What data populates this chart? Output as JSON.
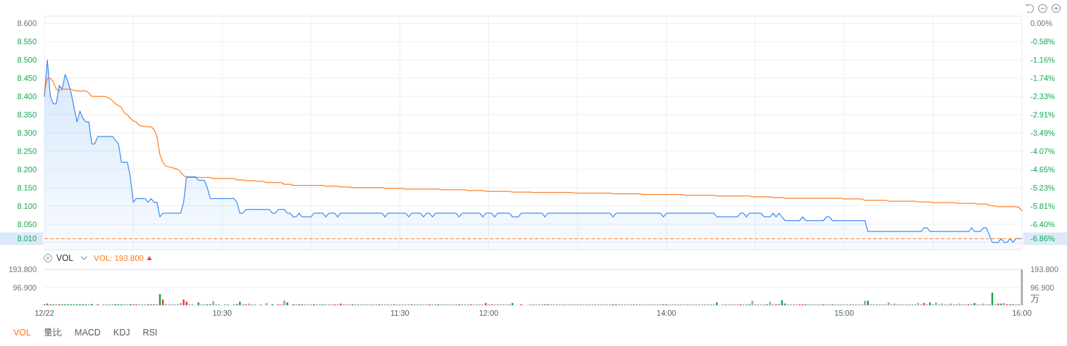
{
  "chart_data": [
    {
      "type": "line",
      "categories": [
        null,
        null,
        null,
        null,
        null,
        null,
        null,
        null,
        null,
        null,
        null,
        null,
        null,
        null,
        null,
        null,
        null,
        null,
        null,
        null,
        null,
        null,
        null,
        null,
        null,
        null,
        null,
        null,
        null,
        null,
        null,
        null,
        null,
        null,
        null,
        null,
        null,
        null,
        null,
        null,
        null,
        null,
        null,
        null,
        null,
        null,
        null,
        null,
        null,
        null,
        null,
        null,
        null,
        null,
        null,
        null,
        null,
        null,
        null,
        null,
        null,
        null,
        null,
        null,
        null,
        null,
        null,
        null,
        null,
        null,
        null,
        null,
        null,
        null,
        null,
        null,
        null,
        null,
        null,
        null,
        null,
        null,
        null,
        null,
        null,
        null,
        null,
        null,
        null,
        null,
        null,
        null,
        null,
        null,
        null,
        null,
        null,
        null,
        null,
        null,
        null,
        null,
        null,
        null,
        null,
        null,
        null,
        null,
        null,
        null,
        null,
        null,
        null,
        null,
        null,
        null,
        null,
        null,
        null,
        null,
        null,
        null,
        null,
        null,
        null,
        null,
        null,
        null,
        null,
        null,
        null,
        null,
        null,
        null,
        null,
        null,
        null,
        null,
        null,
        null,
        null,
        null,
        null,
        null,
        null,
        null,
        null,
        null,
        null,
        null,
        null,
        null,
        null,
        null,
        null,
        null,
        null,
        null,
        null,
        null,
        null,
        null,
        null,
        null,
        null,
        null,
        null,
        null,
        null,
        null,
        null,
        null,
        null,
        null,
        null,
        null,
        null,
        null,
        null,
        null,
        null,
        null,
        null,
        null,
        null,
        null,
        null,
        null,
        null,
        null,
        null,
        null,
        null,
        null,
        null,
        null,
        null,
        null,
        null,
        null,
        null,
        null,
        null,
        null,
        null,
        null,
        null,
        null,
        null,
        null,
        null,
        null,
        null,
        null,
        null,
        null,
        null,
        null,
        null,
        null,
        null,
        null,
        null,
        null,
        null,
        null,
        null,
        null,
        null,
        null,
        null,
        null,
        null,
        null,
        null,
        null,
        null,
        null,
        null,
        null,
        null,
        null,
        null,
        null,
        null,
        null,
        null,
        null,
        null,
        null,
        null,
        null,
        null,
        null,
        null,
        null,
        null,
        null,
        null,
        null,
        null,
        null,
        null,
        null,
        null,
        null,
        null,
        null,
        null,
        null,
        null,
        null,
        null,
        null,
        null,
        null,
        null,
        null,
        null,
        null,
        null,
        null,
        null,
        null,
        null,
        null,
        null,
        null,
        null,
        null,
        null,
        null,
        null,
        null,
        null,
        null,
        null,
        null,
        null,
        null,
        null,
        null,
        null,
        null,
        null,
        null,
        null,
        null,
        null,
        null,
        null,
        null,
        null,
        null,
        null,
        null,
        null,
        null,
        null,
        null,
        null,
        null,
        null,
        null,
        null,
        null,
        null,
        null,
        null,
        null,
        null
      ],
      "ylim": [
        7.98,
        8.62
      ],
      "yticks": [
        {
          "value": 8.6,
          "label": "8.600"
        },
        {
          "value": 8.55,
          "label": "8.550"
        },
        {
          "value": 8.5,
          "label": "8.500"
        },
        {
          "value": 8.45,
          "label": "8.450"
        },
        {
          "value": 8.4,
          "label": "8.400"
        },
        {
          "value": 8.35,
          "label": "8.350"
        },
        {
          "value": 8.3,
          "label": "8.300"
        },
        {
          "value": 8.25,
          "label": "8.250"
        },
        {
          "value": 8.2,
          "label": "8.200"
        },
        {
          "value": 8.15,
          "label": "8.150"
        },
        {
          "value": 8.1,
          "label": "8.100"
        },
        {
          "value": 8.05,
          "label": "8.050"
        },
        {
          "value": 8.0,
          "label": null
        }
      ],
      "y2lim": [
        -7.21,
        0.23
      ],
      "y2ticks": [
        {
          "value": 0,
          "label": "0.00%"
        },
        {
          "value": -0.58,
          "label": "-0.58%"
        },
        {
          "value": -1.16,
          "label": "-1.16%"
        },
        {
          "value": -1.74,
          "label": "-1.74%"
        },
        {
          "value": -2.33,
          "label": "-2.33%"
        },
        {
          "value": -2.91,
          "label": "-2.91%"
        },
        {
          "value": -3.49,
          "label": "-3.49%"
        },
        {
          "value": -4.07,
          "label": "-4.07%"
        },
        {
          "value": -4.65,
          "label": "-4.65%"
        },
        {
          "value": -5.23,
          "label": "-5.23%"
        },
        {
          "value": -5.81,
          "label": "-5.81%"
        },
        {
          "value": -6.4,
          "label": "-6.40%"
        },
        {
          "value": -6.86,
          "label": "-6.86%"
        }
      ],
      "grid": true,
      "tick_labels": "y",
      "ref_lines": [
        {
          "axis": "y",
          "value": 8.01,
          "label": "8.010",
          "color": "#ff7f27",
          "line_style": "dashed"
        }
      ],
      "series": [
        {
          "type": "area",
          "color": "#3b8df5",
          "values": [
            8.4,
            8.5,
            8.4,
            8.38,
            8.38,
            8.43,
            8.42,
            8.46,
            8.44,
            8.41,
            8.37,
            8.33,
            8.36,
            8.34,
            8.33,
            8.33,
            8.27,
            8.27,
            8.29,
            8.29,
            8.29,
            8.29,
            8.29,
            8.29,
            8.28,
            8.27,
            8.22,
            8.22,
            8.22,
            8.18,
            8.11,
            8.12,
            8.12,
            8.12,
            8.12,
            8.11,
            8.12,
            8.11,
            8.11,
            8.07,
            8.08,
            8.08,
            8.08,
            8.08,
            8.08,
            8.08,
            8.08,
            8.11,
            8.18,
            8.18,
            8.18,
            8.18,
            8.17,
            8.17,
            8.17,
            8.15,
            8.12,
            8.12,
            8.12,
            8.12,
            8.12,
            8.12,
            8.12,
            8.12,
            8.12,
            8.11,
            8.08,
            8.08,
            8.09,
            8.09,
            8.09,
            8.09,
            8.09,
            8.09,
            8.09,
            8.09,
            8.09,
            8.08,
            8.08,
            8.09,
            8.09,
            8.09,
            8.08,
            8.08,
            8.07,
            8.07,
            8.08,
            8.07,
            8.07,
            8.07,
            8.07,
            8.08,
            8.08,
            8.08,
            8.08,
            8.07,
            8.08,
            8.08,
            8.08,
            8.07,
            8.08,
            8.08,
            8.08,
            8.08,
            8.08,
            8.08,
            8.08,
            8.08,
            8.08,
            8.08,
            8.08,
            8.08,
            8.08,
            8.08,
            8.08,
            8.07,
            8.08,
            8.08,
            8.08,
            8.08,
            8.08,
            8.08,
            8.08,
            8.07,
            8.08,
            8.08,
            8.08,
            8.08,
            8.07,
            8.08,
            8.08,
            8.07,
            8.08,
            8.08,
            8.08,
            8.08,
            8.08,
            8.08,
            8.08,
            8.08,
            8.07,
            8.08,
            8.08,
            8.08,
            8.08,
            8.08,
            8.08,
            8.08,
            8.07,
            8.08,
            8.08,
            8.08,
            8.07,
            8.08,
            8.08,
            8.08,
            8.08,
            8.08,
            8.07,
            8.07,
            8.07,
            8.08,
            8.08,
            8.08,
            8.08,
            8.08,
            8.08,
            8.08,
            8.08,
            8.07,
            8.08,
            8.08,
            8.08,
            8.08,
            8.08,
            8.08,
            8.08,
            8.08,
            8.08,
            8.08,
            8.08,
            8.08,
            8.08,
            8.08,
            8.08,
            8.08,
            8.08,
            8.08,
            8.08,
            8.08,
            8.08,
            8.08,
            8.07,
            8.08,
            8.08,
            8.08,
            8.08,
            8.08,
            8.08,
            8.08,
            8.08,
            8.08,
            8.08,
            8.08,
            8.08,
            8.08,
            8.08,
            8.08,
            8.08,
            8.07,
            8.08,
            8.08,
            8.08,
            8.08,
            8.08,
            8.08,
            8.08,
            8.08,
            8.08,
            8.08,
            8.08,
            8.08,
            8.08,
            8.08,
            8.08,
            8.08,
            8.08,
            8.07,
            8.07,
            8.07,
            8.07,
            8.07,
            8.07,
            8.07,
            8.07,
            8.08,
            8.08,
            8.07,
            8.08,
            8.08,
            8.08,
            8.08,
            8.08,
            8.07,
            8.07,
            8.07,
            8.08,
            8.07,
            8.08,
            8.07,
            8.06,
            8.06,
            8.06,
            8.06,
            8.06,
            8.06,
            8.07,
            8.06,
            8.06,
            8.06,
            8.06,
            8.06,
            8.06,
            8.06,
            8.07,
            8.07,
            8.06,
            8.06,
            8.06,
            8.06,
            8.06,
            8.06,
            8.06,
            8.06,
            8.06,
            8.06,
            8.06,
            8.06,
            8.03,
            8.03,
            8.03,
            8.03,
            8.03,
            8.03,
            8.03,
            8.03,
            8.03,
            8.03,
            8.03,
            8.03,
            8.03,
            8.03,
            8.03,
            8.03,
            8.03,
            8.03,
            8.03,
            8.04,
            8.04,
            8.03,
            8.03,
            8.03,
            8.03,
            8.03,
            8.03,
            8.03,
            8.03,
            8.03,
            8.03,
            8.03,
            8.03,
            8.03,
            8.03,
            8.04,
            8.03,
            8.03,
            8.03,
            8.04,
            8.04,
            8.02,
            8.0,
            8.0,
            8.0,
            8.01,
            8.0,
            8.0,
            8.01,
            8.0,
            8.01,
            8.01,
            8.01
          ]
        },
        {
          "type": "line",
          "color": "#ff7f27",
          "values": [
            8.41,
            8.45,
            8.45,
            8.44,
            8.42,
            8.415,
            8.42,
            8.42,
            8.42,
            8.42,
            8.417,
            8.415,
            8.415,
            8.415,
            8.415,
            8.41,
            8.4,
            8.4,
            8.4,
            8.4,
            8.4,
            8.398,
            8.395,
            8.388,
            8.38,
            8.375,
            8.37,
            8.355,
            8.35,
            8.34,
            8.333,
            8.33,
            8.321,
            8.319,
            8.317,
            8.317,
            8.317,
            8.31,
            8.29,
            8.24,
            8.219,
            8.209,
            8.207,
            8.205,
            8.203,
            8.2,
            8.193,
            8.183,
            8.178,
            8.178,
            8.178,
            8.178,
            8.178,
            8.178,
            8.178,
            8.178,
            8.178,
            8.175,
            8.175,
            8.175,
            8.175,
            8.175,
            8.175,
            8.175,
            8.175,
            8.171,
            8.171,
            8.171,
            8.169,
            8.169,
            8.169,
            8.169,
            8.167,
            8.167,
            8.167,
            8.164,
            8.164,
            8.164,
            8.164,
            8.164,
            8.164,
            8.159,
            8.159,
            8.159,
            8.156,
            8.156,
            8.156,
            8.156,
            8.156,
            8.156,
            8.156,
            8.156,
            8.156,
            8.156,
            8.156,
            8.154,
            8.154,
            8.154,
            8.154,
            8.154,
            8.152,
            8.152,
            8.152,
            8.152,
            8.15,
            8.15,
            8.15,
            8.15,
            8.15,
            8.15,
            8.15,
            8.15,
            8.15,
            8.15,
            8.15,
            8.148,
            8.148,
            8.148,
            8.148,
            8.148,
            8.148,
            8.148,
            8.146,
            8.146,
            8.146,
            8.146,
            8.146,
            8.146,
            8.146,
            8.146,
            8.146,
            8.146,
            8.146,
            8.146,
            8.144,
            8.144,
            8.144,
            8.144,
            8.144,
            8.144,
            8.144,
            8.144,
            8.144,
            8.142,
            8.142,
            8.142,
            8.142,
            8.142,
            8.142,
            8.14,
            8.14,
            8.14,
            8.14,
            8.14,
            8.14,
            8.14,
            8.14,
            8.14,
            8.138,
            8.138,
            8.138,
            8.138,
            8.138,
            8.138,
            8.138,
            8.137,
            8.137,
            8.137,
            8.137,
            8.137,
            8.137,
            8.137,
            8.137,
            8.137,
            8.137,
            8.137,
            8.137,
            8.137,
            8.137,
            8.135,
            8.135,
            8.135,
            8.135,
            8.135,
            8.135,
            8.135,
            8.135,
            8.135,
            8.135,
            8.135,
            8.135,
            8.135,
            8.133,
            8.133,
            8.133,
            8.133,
            8.133,
            8.133,
            8.133,
            8.133,
            8.133,
            8.133,
            8.131,
            8.131,
            8.131,
            8.131,
            8.131,
            8.131,
            8.131,
            8.131,
            8.131,
            8.131,
            8.131,
            8.131,
            8.131,
            8.131,
            8.129,
            8.129,
            8.129,
            8.129,
            8.129,
            8.129,
            8.129,
            8.129,
            8.129,
            8.129,
            8.129,
            8.127,
            8.127,
            8.127,
            8.127,
            8.127,
            8.127,
            8.127,
            8.127,
            8.127,
            8.127,
            8.127,
            8.127,
            8.125,
            8.125,
            8.125,
            8.125,
            8.125,
            8.125,
            8.125,
            8.123,
            8.123,
            8.123,
            8.123,
            8.121,
            8.121,
            8.121,
            8.121,
            8.121,
            8.121,
            8.121,
            8.121,
            8.121,
            8.121,
            8.121,
            8.121,
            8.121,
            8.121,
            8.121,
            8.121,
            8.121,
            8.121,
            8.121,
            8.121,
            8.119,
            8.119,
            8.119,
            8.119,
            8.119,
            8.119,
            8.119,
            8.115,
            8.115,
            8.115,
            8.115,
            8.115,
            8.115,
            8.115,
            8.115,
            8.113,
            8.113,
            8.113,
            8.113,
            8.113,
            8.113,
            8.113,
            8.113,
            8.113,
            8.113,
            8.111,
            8.111,
            8.111,
            8.111,
            8.111,
            8.109,
            8.109,
            8.109,
            8.109,
            8.109,
            8.109,
            8.109,
            8.109,
            8.107,
            8.107,
            8.107,
            8.107,
            8.107,
            8.107,
            8.107,
            8.105,
            8.105,
            8.105,
            8.105,
            8.102,
            8.1,
            8.1,
            8.098,
            8.098,
            8.098,
            8.098,
            8.098,
            8.098,
            8.098,
            8.096,
            8.087
          ]
        }
      ]
    },
    {
      "type": "bar",
      "title": "VOL",
      "subtitle": "VOL: 193.800",
      "categories": [
        "12/22",
        null,
        null,
        null,
        null,
        null,
        null,
        null,
        null,
        null,
        null,
        null,
        null,
        null,
        null,
        null,
        null,
        null,
        null,
        null,
        null,
        null,
        null,
        null,
        null,
        null,
        null,
        null,
        null,
        null,
        null,
        null,
        null,
        null,
        null,
        null,
        null,
        null,
        null,
        null,
        null,
        null,
        null,
        null,
        null,
        null,
        null,
        null,
        null,
        null,
        null,
        null,
        null,
        null,
        null,
        null,
        null,
        null,
        null,
        null,
        "10:30",
        null,
        null,
        null,
        null,
        null,
        null,
        null,
        null,
        null,
        null,
        null,
        null,
        null,
        null,
        null,
        null,
        null,
        null,
        null,
        null,
        null,
        null,
        null,
        null,
        null,
        null,
        null,
        null,
        null,
        null,
        null,
        null,
        null,
        null,
        null,
        null,
        null,
        null,
        null,
        null,
        null,
        null,
        null,
        null,
        null,
        null,
        null,
        null,
        null,
        null,
        null,
        null,
        null,
        null,
        null,
        null,
        null,
        null,
        null,
        "11:30",
        null,
        null,
        null,
        null,
        null,
        null,
        null,
        null,
        null,
        null,
        null,
        null,
        null,
        null,
        null,
        null,
        null,
        null,
        null,
        null,
        null,
        null,
        null,
        null,
        null,
        null,
        null,
        null,
        null,
        "12:00",
        null,
        null,
        null,
        null,
        null,
        null,
        null,
        null,
        null,
        null,
        null,
        null,
        null,
        null,
        null,
        null,
        null,
        null,
        null,
        null,
        null,
        null,
        null,
        null,
        null,
        null,
        null,
        null,
        null,
        null,
        null,
        null,
        null,
        null,
        null,
        null,
        null,
        null,
        null,
        null,
        null,
        null,
        null,
        null,
        null,
        null,
        null,
        null,
        null,
        null,
        null,
        null,
        null,
        null,
        null,
        null,
        null,
        null,
        null,
        "14:00",
        null,
        null,
        null,
        null,
        null,
        null,
        null,
        null,
        null,
        null,
        null,
        null,
        null,
        null,
        null,
        null,
        null,
        null,
        null,
        null,
        null,
        null,
        null,
        null,
        null,
        null,
        null,
        null,
        null,
        null,
        null,
        null,
        null,
        null,
        null,
        null,
        null,
        null,
        null,
        null,
        null,
        null,
        null,
        null,
        null,
        null,
        null,
        null,
        null,
        null,
        null,
        null,
        null,
        null,
        null,
        null,
        null,
        null,
        null,
        "15:00",
        null,
        null,
        null,
        null,
        null,
        null,
        null,
        null,
        null,
        null,
        null,
        null,
        null,
        null,
        null,
        null,
        null,
        null,
        null,
        null,
        null,
        null,
        null,
        null,
        null,
        null,
        null,
        null,
        null,
        null,
        null,
        null,
        null,
        null,
        null,
        null,
        null,
        null,
        null,
        null,
        null,
        null,
        null,
        null,
        null,
        null,
        null,
        null,
        null,
        null,
        null,
        null,
        null,
        null,
        null,
        null,
        null,
        null,
        null,
        "16:00"
      ],
      "ylim": [
        0,
        193.8
      ],
      "yticks": [
        {
          "value": 193.8,
          "label": "193.800"
        },
        {
          "value": 96.9,
          "label": "96.900"
        }
      ],
      "y2lim": [
        0,
        193.8
      ],
      "y2ticks": [
        {
          "value": 193.8,
          "label": "193.800"
        },
        {
          "value": 96.9,
          "label": "96.900"
        }
      ],
      "y2label": "万",
      "grid": "y",
      "annotations": [
        "VOL",
        "量比",
        "MACD",
        "KDJ",
        "RSI"
      ],
      "values": [
        5,
        9,
        5,
        5,
        6,
        5,
        5,
        5,
        5,
        5,
        5,
        5,
        5,
        5,
        5,
        5,
        7,
        null,
        5,
        null,
        5,
        5,
        5,
        5,
        6,
        5,
        5,
        6,
        5,
        6,
        5,
        5,
        5,
        5,
        5,
        5,
        5,
        5,
        6,
        60,
        31,
        6,
        5,
        5,
        5,
        5,
        12,
        31,
        20,
        5,
        5,
        null,
        15,
        5,
        5,
        5,
        5,
        22,
        5,
        5,
        null,
        5,
        5,
        null,
        5,
        5,
        19,
        5,
        5,
        9,
        5,
        5,
        null,
        5,
        null,
        12,
        null,
        5,
        null,
        5,
        5,
        26,
        15,
        null,
        5,
        5,
        5,
        5,
        5,
        5,
        5,
        5,
        5,
        5,
        5,
        5,
        5,
        5,
        5,
        5,
        9,
        5,
        5,
        5,
        5,
        5,
        5,
        5,
        5,
        5,
        5,
        5,
        5,
        5,
        5,
        5,
        5,
        5,
        5,
        5,
        5,
        5,
        5,
        5,
        5,
        5,
        5,
        5,
        5,
        5,
        5,
        5,
        5,
        5,
        5,
        5,
        5,
        5,
        5,
        5,
        5,
        5,
        5,
        5,
        5,
        5,
        5,
        5,
        5,
        12,
        5,
        5,
        5,
        5,
        5,
        5,
        5,
        5,
        12,
        null,
        null,
        5,
        null,
        null,
        5,
        5,
        5,
        5,
        5,
        5,
        5,
        5,
        5,
        5,
        5,
        5,
        5,
        5,
        5,
        5,
        5,
        5,
        5,
        5,
        5,
        5,
        5,
        5,
        5,
        5,
        5,
        5,
        5,
        5,
        5,
        5,
        5,
        5,
        5,
        7,
        5,
        5,
        5,
        5,
        5,
        5,
        5,
        5,
        5,
        5,
        5,
        5,
        5,
        5,
        5,
        5,
        5,
        5,
        5,
        5,
        5,
        5,
        5,
        5,
        5,
        5,
        5,
        15,
        null,
        5,
        5,
        5,
        5,
        5,
        5,
        5,
        5,
        5,
        5,
        24,
        5,
        5,
        5,
        5,
        5,
        19,
        5,
        5,
        5,
        27,
        9,
        5,
        5,
        5,
        5,
        5,
        5,
        5,
        5,
        5,
        5,
        5,
        5,
        5,
        5,
        5,
        5,
        5,
        5,
        5,
        5,
        5,
        6,
        6,
        5,
        5,
        5,
        24,
        24,
        5,
        5,
        5,
        5,
        5,
        5,
        15,
        5,
        9,
        5,
        5,
        5,
        5,
        5,
        5,
        5,
        12,
        5,
        12,
        5,
        15,
        5,
        15,
        5,
        9,
        5,
        5,
        9,
        5,
        5,
        9,
        5,
        5,
        5,
        5,
        12,
        5,
        5,
        9,
        5,
        5,
        68,
        5,
        9,
        9,
        12,
        5,
        5,
        5,
        5,
        6,
        193.8
      ],
      "colors": [
        "#12a74a",
        "#f23b3b",
        "#12a74a",
        "#12a74a",
        "#9ca3ad",
        "#f23b3b",
        "#12a74a",
        "#12a74a",
        "#12a74a",
        "#12a74a",
        "#12a74a",
        "#12a74a",
        "#f23b3b",
        "#12a74a",
        "#12a74a",
        "#9ca3ad",
        "#12a74a",
        null,
        "#f23b3b",
        null,
        "#9ca3ad",
        "#9ca3ad",
        "#9ca3ad",
        "#9ca3ad",
        "#12a74a",
        "#12a74a",
        "#12a74a",
        "#9ca3ad",
        "#9ca3ad",
        "#12a74a",
        "#f23b3b",
        "#f23b3b",
        "#9ca3ad",
        "#9ca3ad",
        "#9ca3ad",
        "#12a74a",
        "#f23b3b",
        "#12a74a",
        "#9ca3ad",
        "#12a74a",
        "#f23b3b",
        "#9ca3ad",
        "#9ca3ad",
        "#9ca3ad",
        "#9ca3ad",
        "#9ca3ad",
        "#9ca3ad",
        "#f23b3b",
        "#f23b3b",
        "#9ca3ad",
        "#9ca3ad",
        null,
        "#12a74a",
        "#9ca3ad",
        "#9ca3ad",
        "#12a74a",
        "#12a74a",
        "#9ca3ad",
        "#9ca3ad",
        "#9ca3ad",
        null,
        "#9ca3ad",
        "#9ca3ad",
        null,
        "#9ca3ad",
        "#12a74a",
        "#12a74a",
        "#9ca3ad",
        "#f23b3b",
        "#9ca3ad",
        "#9ca3ad",
        "#9ca3ad",
        null,
        "#9ca3ad",
        null,
        "#9ca3ad",
        null,
        "#12a74a",
        null,
        "#f23b3b",
        "#9ca3ad",
        "#9ca3ad",
        "#12a74a",
        null,
        "#12a74a",
        "#9ca3ad",
        "#f23b3b",
        "#12a74a",
        "#9ca3ad",
        "#9ca3ad",
        "#9ca3ad",
        "#f23b3b",
        "#9ca3ad",
        "#9ca3ad",
        "#12a74a",
        "#9ca3ad",
        "#9ca3ad",
        "#9ca3ad",
        "#f23b3b",
        "#9ca3ad",
        "#f23b3b",
        "#9ca3ad",
        "#9ca3ad",
        "#9ca3ad",
        "#12a74a",
        "#9ca3ad",
        "#9ca3ad",
        "#9ca3ad",
        "#9ca3ad",
        "#9ca3ad",
        "#9ca3ad",
        "#9ca3ad",
        "#9ca3ad",
        "#12a74a",
        "#9ca3ad",
        "#9ca3ad",
        "#9ca3ad",
        "#9ca3ad",
        "#f23b3b",
        "#9ca3ad",
        "#9ca3ad",
        "#9ca3ad",
        "#9ca3ad",
        "#9ca3ad",
        "#12a74a",
        "#9ca3ad",
        "#9ca3ad",
        "#9ca3ad",
        "#9ca3ad",
        "#9ca3ad",
        "#f23b3b",
        "#9ca3ad",
        "#9ca3ad",
        "#12a74a",
        "#9ca3ad",
        "#9ca3ad",
        "#9ca3ad",
        "#9ca3ad",
        "#9ca3ad",
        "#9ca3ad",
        "#12a74a",
        "#9ca3ad",
        "#9ca3ad",
        "#9ca3ad",
        "#f23b3b",
        "#9ca3ad",
        "#9ca3ad",
        "#9ca3ad",
        "#9ca3ad",
        "#f23b3b",
        "#9ca3ad",
        "#f23b3b",
        "#9ca3ad",
        "#9ca3ad",
        "#9ca3ad",
        "#9ca3ad",
        "#9ca3ad",
        "#9ca3ad",
        "#12a74a",
        null,
        null,
        "#f23b3b",
        null,
        null,
        "#9ca3ad",
        "#9ca3ad",
        "#9ca3ad",
        "#9ca3ad",
        "#9ca3ad",
        "#12a74a",
        "#f23b3b",
        "#9ca3ad",
        "#9ca3ad",
        "#9ca3ad",
        "#9ca3ad",
        "#9ca3ad",
        "#9ca3ad",
        "#9ca3ad",
        "#9ca3ad",
        "#9ca3ad",
        "#9ca3ad",
        "#9ca3ad",
        "#9ca3ad",
        "#9ca3ad",
        "#9ca3ad",
        "#9ca3ad",
        "#9ca3ad",
        "#9ca3ad",
        "#9ca3ad",
        "#9ca3ad",
        "#9ca3ad",
        "#9ca3ad",
        "#12a74a",
        "#f23b3b",
        "#9ca3ad",
        "#9ca3ad",
        "#9ca3ad",
        "#9ca3ad",
        "#9ca3ad",
        "#9ca3ad",
        "#9ca3ad",
        "#9ca3ad",
        "#9ca3ad",
        "#9ca3ad",
        "#9ca3ad",
        "#9ca3ad",
        "#9ca3ad",
        "#9ca3ad",
        "#9ca3ad",
        "#12a74a",
        "#f23b3b",
        "#9ca3ad",
        "#9ca3ad",
        "#9ca3ad",
        "#9ca3ad",
        "#9ca3ad",
        "#9ca3ad",
        "#9ca3ad",
        "#9ca3ad",
        "#9ca3ad",
        "#9ca3ad",
        "#9ca3ad",
        "#9ca3ad",
        "#9ca3ad",
        "#9ca3ad",
        "#9ca3ad",
        "#9ca3ad",
        "#12a74a",
        null,
        "#9ca3ad",
        "#9ca3ad",
        "#9ca3ad",
        "#9ca3ad",
        "#9ca3ad",
        "#9ca3ad",
        "#f23b3b",
        "#9ca3ad",
        "#9ca3ad",
        "#12a74a",
        "#9ca3ad",
        "#9ca3ad",
        "#9ca3ad",
        "#9ca3ad",
        "#9ca3ad",
        "#12a74a",
        "#9ca3ad",
        "#9ca3ad",
        "#f23b3b",
        "#f23b3b",
        "#12a74a",
        "#12a74a",
        "#9ca3ad",
        "#9ca3ad",
        "#9ca3ad",
        "#9ca3ad",
        "#f23b3b",
        "#f23b3b",
        "#12a74a",
        "#9ca3ad",
        "#9ca3ad",
        "#9ca3ad",
        "#9ca3ad",
        "#9ca3ad",
        "#f23b3b",
        "#9ca3ad",
        "#9ca3ad",
        "#12a74a",
        "#9ca3ad",
        "#9ca3ad",
        "#9ca3ad",
        "#9ca3ad",
        "#9ca3ad",
        "#9ca3ad",
        "#9ca3ad",
        "#9ca3ad",
        "#9ca3ad",
        "#9ca3ad",
        "#9ca3ad",
        "#12a74a",
        "#9ca3ad",
        "#9ca3ad",
        "#9ca3ad",
        "#9ca3ad",
        "#9ca3ad",
        "#9ca3ad",
        "#9ca3ad",
        "#9ca3ad",
        "#9ca3ad",
        "#9ca3ad",
        "#9ca3ad",
        "#9ca3ad",
        "#9ca3ad",
        "#9ca3ad",
        "#9ca3ad",
        "#9ca3ad",
        "#9ca3ad",
        "#9ca3ad",
        "#f23b3b",
        "#9ca3ad",
        "#12a74a",
        "#9ca3ad",
        "#9ca3ad",
        "#9ca3ad",
        "#9ca3ad",
        "#9ca3ad",
        "#9ca3ad",
        "#9ca3ad",
        "#9ca3ad",
        "#9ca3ad",
        "#9ca3ad",
        "#9ca3ad",
        "#9ca3ad",
        "#f23b3b",
        "#9ca3ad",
        "#12a74a",
        "#9ca3ad",
        "#9ca3ad",
        "#9ca3ad",
        "#9ca3ad",
        "#9ca3ad",
        "#12a74a",
        "#9ca3ad",
        "#f23b3b",
        "#12a74a",
        "#9ca3ad",
        "#f23b3b",
        "#12a74a",
        "#f23b3b",
        "#9ca3ad",
        "#9ca3ad",
        "#9ca3ad"
      ]
    }
  ]
}
